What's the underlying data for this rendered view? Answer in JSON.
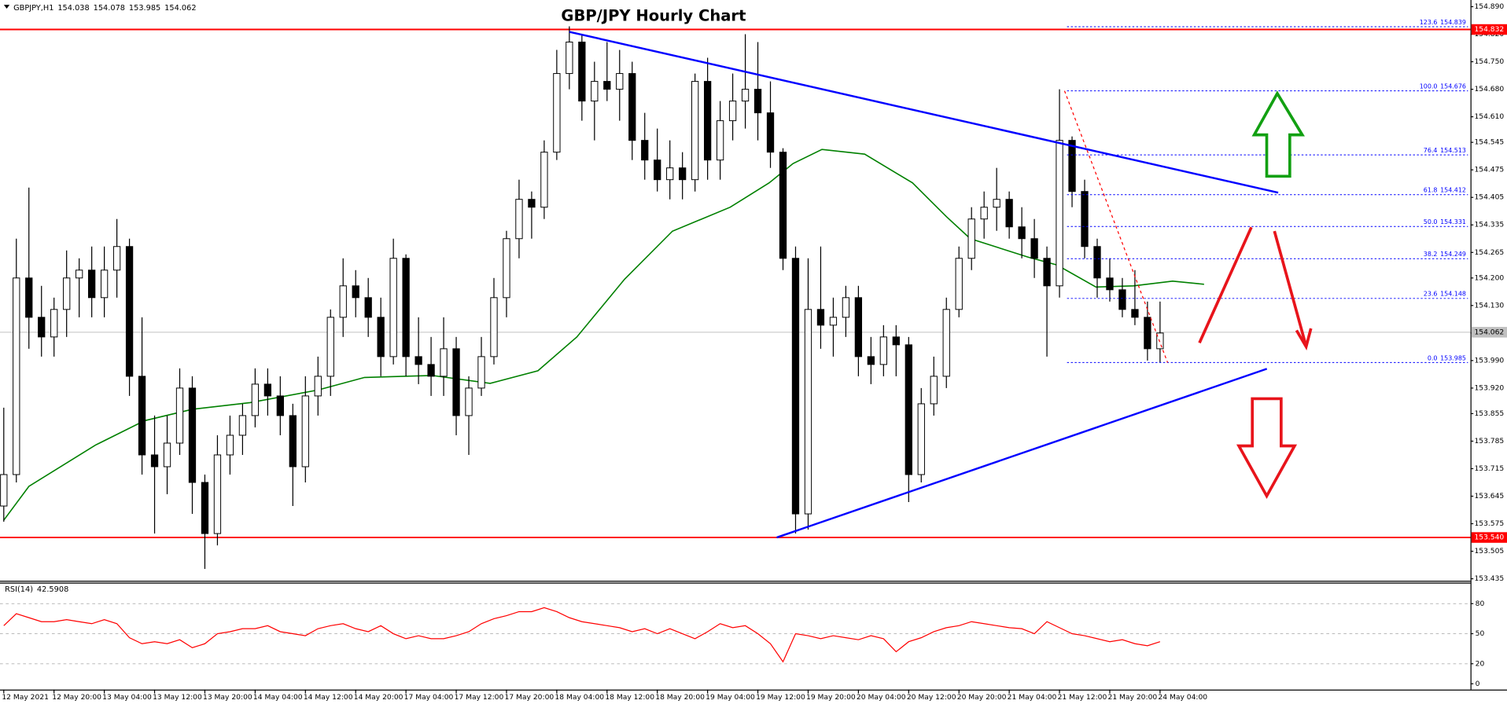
{
  "chart_data": [
    {
      "type": "candlestick",
      "title": "GBP/JPY Hourly Chart",
      "header": {
        "symbol": "GBPJPY,H1",
        "ohlc": [
          154.038,
          154.078,
          153.985,
          154.062
        ]
      },
      "up_color": "#ffffff",
      "down_color": "#000000",
      "ohlc": [
        [
          153.62,
          153.87,
          153.58,
          153.7
        ],
        [
          153.7,
          154.3,
          153.68,
          154.2
        ],
        [
          154.2,
          154.43,
          154.02,
          154.1
        ],
        [
          154.1,
          154.18,
          154.0,
          154.05
        ],
        [
          154.05,
          154.15,
          154.0,
          154.12
        ],
        [
          154.12,
          154.27,
          154.05,
          154.2
        ],
        [
          154.2,
          154.25,
          154.1,
          154.22
        ],
        [
          154.22,
          154.28,
          154.1,
          154.15
        ],
        [
          154.15,
          154.28,
          154.1,
          154.22
        ],
        [
          154.22,
          154.35,
          154.15,
          154.28
        ],
        [
          154.28,
          154.3,
          153.9,
          153.95
        ],
        [
          153.95,
          154.1,
          153.7,
          153.75
        ],
        [
          153.75,
          153.85,
          153.55,
          153.72
        ],
        [
          153.72,
          153.85,
          153.65,
          153.78
        ],
        [
          153.78,
          153.97,
          153.75,
          153.92
        ],
        [
          153.92,
          153.95,
          153.6,
          153.68
        ],
        [
          153.68,
          153.7,
          153.46,
          153.55
        ],
        [
          153.55,
          153.8,
          153.52,
          153.75
        ],
        [
          153.75,
          153.85,
          153.7,
          153.8
        ],
        [
          153.8,
          153.88,
          153.75,
          153.85
        ],
        [
          153.85,
          153.97,
          153.82,
          153.93
        ],
        [
          153.93,
          153.97,
          153.85,
          153.9
        ],
        [
          153.9,
          153.95,
          153.8,
          153.85
        ],
        [
          153.85,
          153.88,
          153.62,
          153.72
        ],
        [
          153.72,
          153.95,
          153.68,
          153.9
        ],
        [
          153.9,
          154.0,
          153.85,
          153.95
        ],
        [
          153.95,
          154.12,
          153.9,
          154.1
        ],
        [
          154.1,
          154.25,
          154.05,
          154.18
        ],
        [
          154.18,
          154.22,
          154.1,
          154.15
        ],
        [
          154.15,
          154.2,
          154.05,
          154.1
        ],
        [
          154.1,
          154.15,
          153.95,
          154.0
        ],
        [
          154.0,
          154.3,
          153.98,
          154.25
        ],
        [
          154.25,
          154.26,
          153.95,
          154.0
        ],
        [
          154.0,
          154.1,
          153.93,
          153.98
        ],
        [
          153.98,
          154.05,
          153.9,
          153.95
        ],
        [
          153.95,
          154.1,
          153.9,
          154.02
        ],
        [
          154.02,
          154.05,
          153.8,
          153.85
        ],
        [
          153.85,
          153.95,
          153.75,
          153.92
        ],
        [
          153.92,
          154.05,
          153.9,
          154.0
        ],
        [
          154.0,
          154.2,
          153.98,
          154.15
        ],
        [
          154.15,
          154.32,
          154.1,
          154.3
        ],
        [
          154.3,
          154.45,
          154.25,
          154.4
        ],
        [
          154.4,
          154.42,
          154.3,
          154.38
        ],
        [
          154.38,
          154.55,
          154.35,
          154.52
        ],
        [
          154.52,
          154.78,
          154.5,
          154.72
        ],
        [
          154.72,
          154.84,
          154.68,
          154.8
        ],
        [
          154.8,
          154.82,
          154.6,
          154.65
        ],
        [
          154.65,
          154.75,
          154.55,
          154.7
        ],
        [
          154.7,
          154.8,
          154.65,
          154.68
        ],
        [
          154.68,
          154.78,
          154.6,
          154.72
        ],
        [
          154.72,
          154.75,
          154.5,
          154.55
        ],
        [
          154.55,
          154.62,
          154.45,
          154.5
        ],
        [
          154.5,
          154.58,
          154.42,
          154.45
        ],
        [
          154.45,
          154.55,
          154.4,
          154.48
        ],
        [
          154.48,
          154.52,
          154.4,
          154.45
        ],
        [
          154.45,
          154.72,
          154.42,
          154.7
        ],
        [
          154.7,
          154.76,
          154.45,
          154.5
        ],
        [
          154.5,
          154.65,
          154.45,
          154.6
        ],
        [
          154.6,
          154.72,
          154.55,
          154.65
        ],
        [
          154.65,
          154.82,
          154.58,
          154.68
        ],
        [
          154.68,
          154.8,
          154.55,
          154.62
        ],
        [
          154.62,
          154.7,
          154.48,
          154.52
        ],
        [
          154.52,
          154.53,
          154.22,
          154.25
        ],
        [
          154.25,
          154.28,
          153.55,
          153.6
        ],
        [
          153.6,
          154.25,
          153.56,
          154.12
        ],
        [
          154.12,
          154.28,
          154.02,
          154.08
        ],
        [
          154.08,
          154.15,
          154.0,
          154.1
        ],
        [
          154.1,
          154.18,
          154.05,
          154.15
        ],
        [
          154.15,
          154.18,
          153.95,
          154.0
        ],
        [
          154.0,
          154.05,
          153.93,
          153.98
        ],
        [
          153.98,
          154.08,
          153.95,
          154.05
        ],
        [
          154.05,
          154.08,
          153.95,
          154.03
        ],
        [
          154.03,
          154.05,
          153.63,
          153.7
        ],
        [
          153.7,
          153.92,
          153.68,
          153.88
        ],
        [
          153.88,
          154.0,
          153.85,
          153.95
        ],
        [
          153.95,
          154.15,
          153.92,
          154.12
        ],
        [
          154.12,
          154.28,
          154.1,
          154.25
        ],
        [
          154.25,
          154.38,
          154.22,
          154.35
        ],
        [
          154.35,
          154.42,
          154.3,
          154.38
        ],
        [
          154.38,
          154.48,
          154.32,
          154.4
        ],
        [
          154.4,
          154.42,
          154.3,
          154.33
        ],
        [
          154.33,
          154.38,
          154.25,
          154.3
        ],
        [
          154.3,
          154.35,
          154.2,
          154.25
        ],
        [
          154.25,
          154.28,
          154.0,
          154.18
        ],
        [
          154.18,
          154.68,
          154.15,
          154.55
        ],
        [
          154.55,
          154.56,
          154.38,
          154.42
        ],
        [
          154.42,
          154.45,
          154.25,
          154.28
        ],
        [
          154.28,
          154.3,
          154.15,
          154.2
        ],
        [
          154.2,
          154.25,
          154.14,
          154.17
        ],
        [
          154.17,
          154.2,
          154.1,
          154.12
        ],
        [
          154.12,
          154.22,
          154.08,
          154.1
        ],
        [
          154.1,
          154.14,
          153.99,
          154.02
        ],
        [
          154.02,
          154.14,
          153.985,
          154.06
        ]
      ],
      "xlim": [
        -0.3,
        116.7
      ],
      "xticks": [
        {
          "value": 0,
          "label": "12 May 2021"
        },
        {
          "value": 4,
          "label": "12 May 20:00"
        },
        {
          "value": 8,
          "label": "13 May 04:00"
        },
        {
          "value": 12,
          "label": "13 May 12:00"
        },
        {
          "value": 16,
          "label": "13 May 20:00"
        },
        {
          "value": 20,
          "label": "14 May 04:00"
        },
        {
          "value": 24,
          "label": "14 May 12:00"
        },
        {
          "value": 28,
          "label": "14 May 20:00"
        },
        {
          "value": 32,
          "label": "17 May 04:00"
        },
        {
          "value": 36,
          "label": "17 May 12:00"
        },
        {
          "value": 40,
          "label": "17 May 20:00"
        },
        {
          "value": 44,
          "label": "18 May 04:00"
        },
        {
          "value": 48,
          "label": "18 May 12:00"
        },
        {
          "value": 52,
          "label": "18 May 20:00"
        },
        {
          "value": 56,
          "label": "19 May 04:00"
        },
        {
          "value": 60,
          "label": "19 May 12:00"
        },
        {
          "value": 64,
          "label": "19 May 20:00"
        },
        {
          "value": 68,
          "label": "20 May 04:00"
        },
        {
          "value": 72,
          "label": "20 May 12:00"
        },
        {
          "value": 76,
          "label": "20 May 20:00"
        },
        {
          "value": 80,
          "label": "21 May 04:00"
        },
        {
          "value": 84,
          "label": "21 May 12:00"
        },
        {
          "value": 88,
          "label": "21 May 20:00"
        },
        {
          "value": 92,
          "label": "24 May 04:00"
        }
      ],
      "ylim": [
        153.43,
        154.907
      ],
      "yticks": [
        153.435,
        153.505,
        153.575,
        153.645,
        153.715,
        153.785,
        153.855,
        {
          "value": 153.92,
          "label": "153.920"
        },
        {
          "value": 153.99,
          "label": "153.990"
        },
        {
          "value": 154.06,
          "label": "154.060"
        },
        {
          "value": 154.13,
          "label": "154.130"
        },
        {
          "value": 154.2,
          "label": "154.200"
        },
        154.265,
        154.335,
        154.405,
        154.475,
        154.545,
        {
          "value": 154.61,
          "label": "154.610"
        },
        {
          "value": 154.68,
          "label": "154.680"
        },
        {
          "value": 154.75,
          "label": "154.750"
        },
        {
          "value": 154.82,
          "label": "154.820"
        },
        {
          "value": 154.89,
          "label": "154.890"
        }
      ],
      "levels": [
        {
          "value": 154.832,
          "color": "#ff0000"
        },
        {
          "value": {
            "value": 153.54,
            "label": "153.540"
          },
          "color": "#ff0000"
        }
      ],
      "current_price": {
        "value": 154.062,
        "color": "#c0c0c0"
      },
      "moving_average": {
        "color": "#008000",
        "x": [
          0,
          2,
          7.3,
          11.2,
          15,
          19.6,
          25,
          28.7,
          34.1,
          38.7,
          42.5,
          45.6,
          49.4,
          53.2,
          57.8,
          60.9,
          62.8,
          65.1,
          68.5,
          72.3,
          75,
          76.9,
          81.5,
          83.8,
          86.9,
          89.9,
          93,
          95.5
        ],
        "values": [
          153.584,
          153.67,
          153.775,
          153.837,
          153.866,
          153.883,
          153.915,
          153.947,
          153.952,
          153.932,
          153.964,
          154.05,
          154.197,
          154.319,
          154.38,
          154.442,
          154.491,
          154.527,
          154.515,
          154.442,
          154.356,
          154.3,
          154.253,
          154.233,
          154.177,
          154.18,
          154.192,
          154.184
        ]
      },
      "trend_lines": [
        {
          "color": "#0000ff",
          "x": [
            45.0,
            101.4
          ],
          "values": [
            154.826,
            154.417
          ]
        },
        {
          "color": "#0000ff",
          "x": [
            61.5,
            100.5
          ],
          "values": [
            153.54,
            153.969
          ]
        }
      ],
      "fibonacci": {
        "color": "#0000ff",
        "x": [
          84.6,
          116.5
        ],
        "levels": [
          {
            "ratio": 123.6,
            "price": 154.839
          },
          {
            "ratio": {
              "value": 100,
              "label": "100.0"
            },
            "price": 154.676
          },
          {
            "ratio": 76.4,
            "price": 154.513
          },
          {
            "ratio": 61.8,
            "price": 154.412
          },
          {
            "ratio": {
              "value": 50,
              "label": "50.0"
            },
            "price": 154.331
          },
          {
            "ratio": 38.2,
            "price": 154.249
          },
          {
            "ratio": 23.6,
            "price": 154.148
          },
          {
            "ratio": {
              "value": 0,
              "label": "0.0"
            },
            "price": 153.985
          }
        ]
      },
      "fib_swing": {
        "color": "#ff0000",
        "x": [
          84.4,
          92.6
        ],
        "values": [
          154.676,
          153.985
        ]
      }
    },
    {
      "type": "line",
      "name": "RSI(14)",
      "last_value": 42.5908,
      "color": "#ff0000",
      "values": [
        58,
        70,
        66,
        62,
        62,
        64,
        62,
        60,
        64,
        60,
        46,
        40,
        42,
        40,
        44,
        36,
        40,
        50,
        52,
        55,
        55,
        58,
        52,
        50,
        48,
        55,
        58,
        60,
        55,
        52,
        58,
        50,
        45,
        48,
        45,
        45,
        48,
        52,
        60,
        65,
        68,
        72,
        72,
        76,
        72,
        66,
        62,
        60,
        58,
        56,
        52,
        55,
        50,
        55,
        50,
        45,
        52,
        60,
        56,
        58,
        50,
        40,
        22,
        50,
        48,
        45,
        48,
        46,
        44,
        48,
        45,
        32,
        42,
        46,
        52,
        56,
        58,
        62,
        60,
        58,
        56,
        55,
        50,
        62,
        56,
        50,
        48,
        45,
        42,
        44,
        40,
        38,
        42
      ],
      "ylim": [
        0,
        100
      ],
      "yticks": [
        0,
        20,
        50,
        80
      ]
    }
  ]
}
